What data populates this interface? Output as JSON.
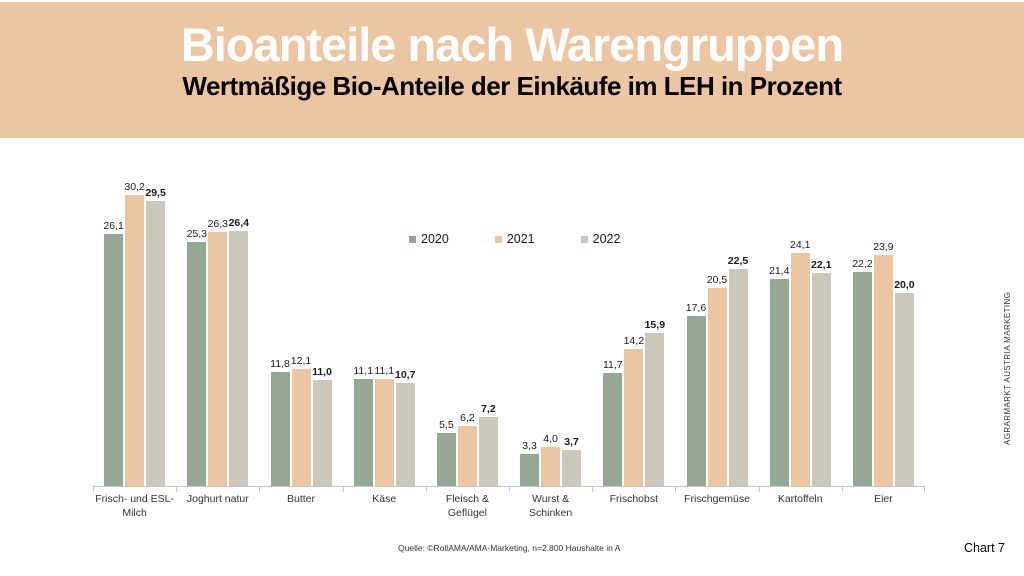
{
  "header": {
    "title": "Bioanteile nach Warengruppen",
    "subtitle": "Wertmäßige Bio-Anteile der Einkäufe im LEH in Prozent",
    "bg_color": "#ECC5A3",
    "title_color": "#FFFFFF",
    "subtitle_color": "#000000"
  },
  "chart_data": {
    "type": "bar",
    "title": "Bioanteile nach Warengruppen",
    "subtitle": "Wertmäßige Bio-Anteile der Einkäufe im LEH in Prozent",
    "categories": [
      "Frisch- und ESL-Milch",
      "Joghurt natur",
      "Butter",
      "Käse",
      "Fleisch & Geflügel",
      "Wurst & Schinken",
      "Frischobst",
      "Frischgemüse",
      "Kartoffeln",
      "Eier"
    ],
    "series": [
      {
        "name": "2020",
        "color": "#94A894",
        "bold_labels": false,
        "values": [
          26.1,
          25.3,
          11.8,
          11.1,
          5.5,
          3.3,
          11.7,
          17.6,
          21.4,
          22.2
        ],
        "labels": [
          "26,1",
          "25,3",
          "11,8",
          "11,1",
          "5,5",
          "3,3",
          "11,7",
          "17,6",
          "21,4",
          "22,2"
        ]
      },
      {
        "name": "2021",
        "color": "#ECC6A3",
        "bold_labels": false,
        "values": [
          30.2,
          26.3,
          12.1,
          11.1,
          6.2,
          4.0,
          14.2,
          20.5,
          24.1,
          23.9
        ],
        "labels": [
          "30,2",
          "26,3",
          "12,1",
          "11,1",
          "6,2",
          "4,0",
          "14,2",
          "20,5",
          "24,1",
          "23,9"
        ]
      },
      {
        "name": "2022",
        "color": "#CCC7BB",
        "bold_labels": true,
        "values": [
          29.5,
          26.4,
          11.0,
          10.7,
          7.2,
          3.7,
          15.9,
          22.5,
          22.1,
          20.0
        ],
        "labels": [
          "29,5",
          "26,4",
          "11,0",
          "10,7",
          "7,2",
          "3,7",
          "15,9",
          "22,5",
          "22,1",
          "20,0"
        ]
      }
    ],
    "ylim": [
      0,
      31
    ],
    "grid": false,
    "axis_color": "#C6C6C6",
    "legend_position": "top-center",
    "value_label_decimal": "comma",
    "unit": "Prozent"
  },
  "sidebar_text": "AGRARMARKT AUSTRIA MARKETING",
  "footer": {
    "source": "Quelle: ©RollAMA/AMA-Marketing, n=2.800 Haushalte in A",
    "chart_label": "Chart 7"
  }
}
